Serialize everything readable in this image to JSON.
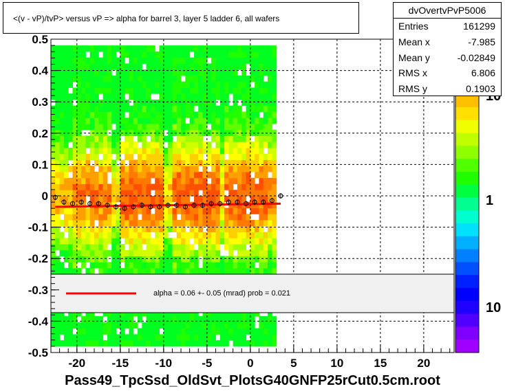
{
  "title": "<(v - vP)/tvP> versus   vP => alpha for barrel 3, layer 5 ladder 6, all wafers",
  "stats": {
    "name": "dvOvertvPvP5006",
    "rows": [
      {
        "key": "Entries",
        "value": "161299"
      },
      {
        "key": "Mean x",
        "value": "-7.985"
      },
      {
        "key": "Mean y",
        "value": "-0.02849"
      },
      {
        "key": "RMS x",
        "value": "6.806"
      },
      {
        "key": "RMS y",
        "value": "0.1903"
      }
    ]
  },
  "fit_legend": "alpha =    0.06 +-  0.05 (mrad) prob = 0.021",
  "xlabel": "Pass49_TpcSsd_OldSvt_PlotsG40GNFP25rCut0.5cm.root",
  "colors": {
    "fit_line": "#ff0000",
    "profile_marker": "#000000"
  },
  "chart_data": {
    "type": "heatmap",
    "xlim": [
      -23,
      23.5
    ],
    "ylim": [
      -0.5,
      0.5
    ],
    "x_ticks": [
      -20,
      -15,
      -10,
      -5,
      0,
      5,
      10,
      15,
      20
    ],
    "y_ticks": [
      -0.5,
      -0.4,
      -0.3,
      -0.2,
      -0.1,
      0,
      0.1,
      0.2,
      0.3,
      0.4,
      0.5
    ],
    "x_tick_labels": [
      "-20",
      "-15",
      "-10",
      "-5",
      "0",
      "5",
      "10",
      "15",
      "20"
    ],
    "y_tick_labels": [
      "-0.5",
      "-0.4",
      "-0.3",
      "-0.2",
      "-0.1",
      "0",
      "0.1",
      "0.2",
      "0.3",
      "0.4",
      "0.5"
    ],
    "grid": true,
    "data_x_range": [
      -23,
      3
    ],
    "colorbar_labels": [
      "10",
      "1",
      "10"
    ],
    "fit": {
      "x": [
        -22.5,
        3.5
      ],
      "y": [
        -0.035,
        -0.025
      ]
    },
    "profile": {
      "x": [
        -22.5,
        -21.5,
        -20.5,
        -19.5,
        -18.5,
        -17.5,
        -16.5,
        -15.5,
        -14.5,
        -13.5,
        -12.5,
        -11.5,
        -10.5,
        -9.5,
        -8.5,
        -7.5,
        -6.5,
        -5.5,
        -4.5,
        -3.5,
        -2.5,
        -1.5,
        -0.5,
        0.5,
        1.5,
        2.5,
        3.5
      ],
      "y": [
        -0.005,
        -0.02,
        -0.025,
        -0.02,
        -0.025,
        -0.025,
        -0.03,
        -0.035,
        -0.04,
        -0.035,
        -0.03,
        -0.035,
        -0.035,
        -0.03,
        -0.03,
        -0.035,
        -0.03,
        -0.03,
        -0.025,
        -0.025,
        -0.02,
        -0.02,
        -0.025,
        -0.02,
        -0.02,
        -0.015,
        0.0
      ]
    }
  }
}
